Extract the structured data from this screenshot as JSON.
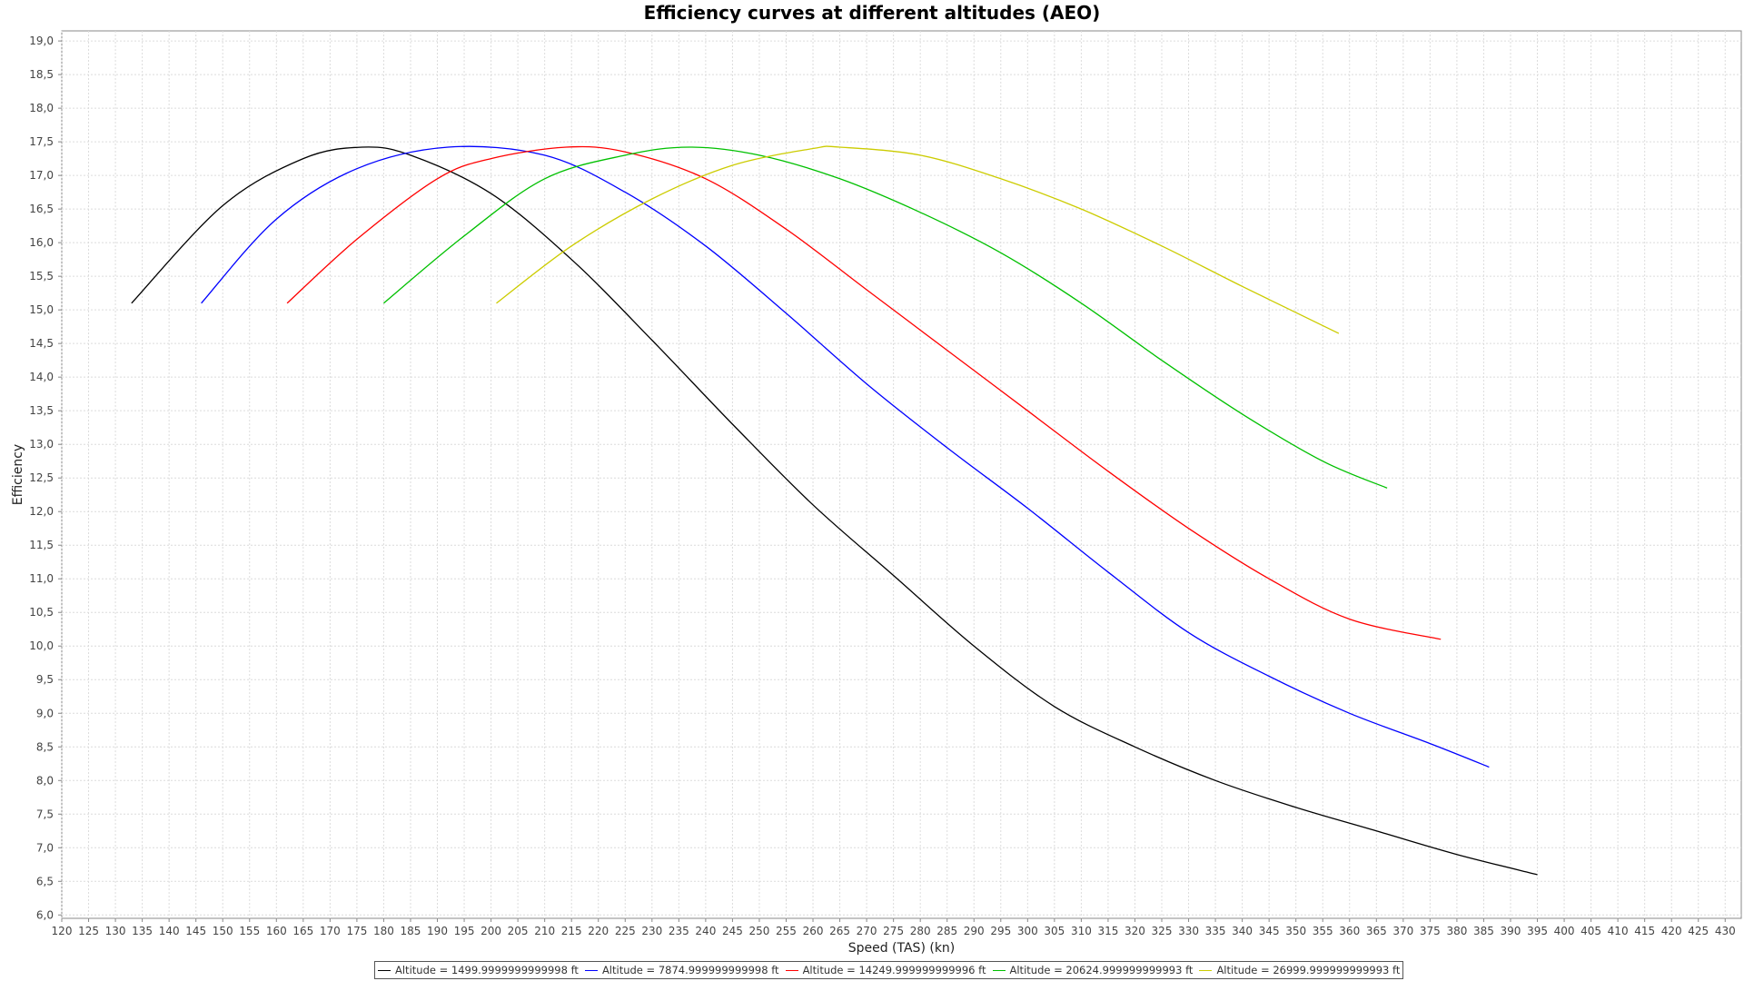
{
  "chart_data": {
    "type": "line",
    "title": "Efficiency curves at different altitudes (AEO)",
    "xlabel": "Speed (TAS) (kn)",
    "ylabel": "Efficiency",
    "xlim": [
      120,
      433
    ],
    "ylim": [
      5.95,
      19.15
    ],
    "x_ticks": [
      120,
      125,
      130,
      135,
      140,
      145,
      150,
      155,
      160,
      165,
      170,
      175,
      180,
      185,
      190,
      195,
      200,
      205,
      210,
      215,
      220,
      225,
      230,
      235,
      240,
      245,
      250,
      255,
      260,
      265,
      270,
      275,
      280,
      285,
      290,
      295,
      300,
      305,
      310,
      315,
      320,
      325,
      330,
      335,
      340,
      345,
      350,
      355,
      360,
      365,
      370,
      375,
      380,
      385,
      390,
      395,
      400,
      405,
      410,
      415,
      420,
      425,
      430
    ],
    "y_ticks": [
      "6,0",
      "6,5",
      "7,0",
      "7,5",
      "8,0",
      "8,5",
      "9,0",
      "9,5",
      "10,0",
      "10,5",
      "11,0",
      "11,5",
      "12,0",
      "12,5",
      "13,0",
      "13,5",
      "14,0",
      "14,5",
      "15,0",
      "15,5",
      "16,0",
      "16,5",
      "17,0",
      "17,5",
      "18,0",
      "18,5",
      "19,0"
    ],
    "grid": true,
    "legend_position": "bottom",
    "series": [
      {
        "name": "Altitude = 1499.9999999999998 ft",
        "color": "#000000",
        "x": [
          133,
          150,
          165,
          176,
          185,
          200,
          215,
          230,
          245,
          260,
          275,
          290,
          305,
          320,
          335,
          350,
          365,
          380,
          395
        ],
        "y": [
          15.1,
          16.55,
          17.25,
          17.42,
          17.3,
          16.73,
          15.75,
          14.55,
          13.3,
          12.1,
          11.05,
          10.0,
          9.1,
          8.5,
          8.0,
          7.6,
          7.25,
          6.9,
          6.6
        ]
      },
      {
        "name": "Altitude = 7874.999999999998 ft",
        "color": "#0000ff",
        "x": [
          146,
          160,
          175,
          192,
          210,
          225,
          240,
          255,
          270,
          285,
          300,
          315,
          330,
          345,
          360,
          375,
          386
        ],
        "y": [
          15.1,
          16.35,
          17.1,
          17.42,
          17.3,
          16.75,
          15.95,
          14.95,
          13.9,
          12.95,
          12.05,
          11.1,
          10.2,
          9.55,
          9.0,
          8.55,
          8.2
        ]
      },
      {
        "name": "Altitude = 14249.999999999996 ft",
        "color": "#ff0000",
        "x": [
          162,
          175,
          190,
          200,
          214,
          225,
          240,
          255,
          270,
          285,
          300,
          315,
          330,
          345,
          360,
          377
        ],
        "y": [
          15.1,
          16.05,
          16.95,
          17.25,
          17.42,
          17.35,
          16.95,
          16.2,
          15.3,
          14.4,
          13.5,
          12.6,
          11.75,
          11.0,
          10.4,
          10.1
        ]
      },
      {
        "name": "Altitude = 20624.999999999993 ft",
        "color": "#00c000",
        "x": [
          180,
          195,
          210,
          225,
          237,
          250,
          265,
          280,
          295,
          310,
          325,
          340,
          355,
          367
        ],
        "y": [
          15.1,
          16.1,
          16.95,
          17.3,
          17.42,
          17.3,
          16.95,
          16.45,
          15.85,
          15.1,
          14.25,
          13.45,
          12.75,
          12.35
        ]
      },
      {
        "name": "Altitude = 26999.999999999993 ft",
        "color": "#cccc00",
        "x": [
          201,
          215,
          230,
          245,
          260,
          265,
          280,
          295,
          310,
          325,
          340,
          358
        ],
        "y": [
          15.1,
          15.95,
          16.65,
          17.15,
          17.4,
          17.42,
          17.3,
          16.95,
          16.5,
          15.95,
          15.35,
          14.65
        ]
      }
    ]
  }
}
